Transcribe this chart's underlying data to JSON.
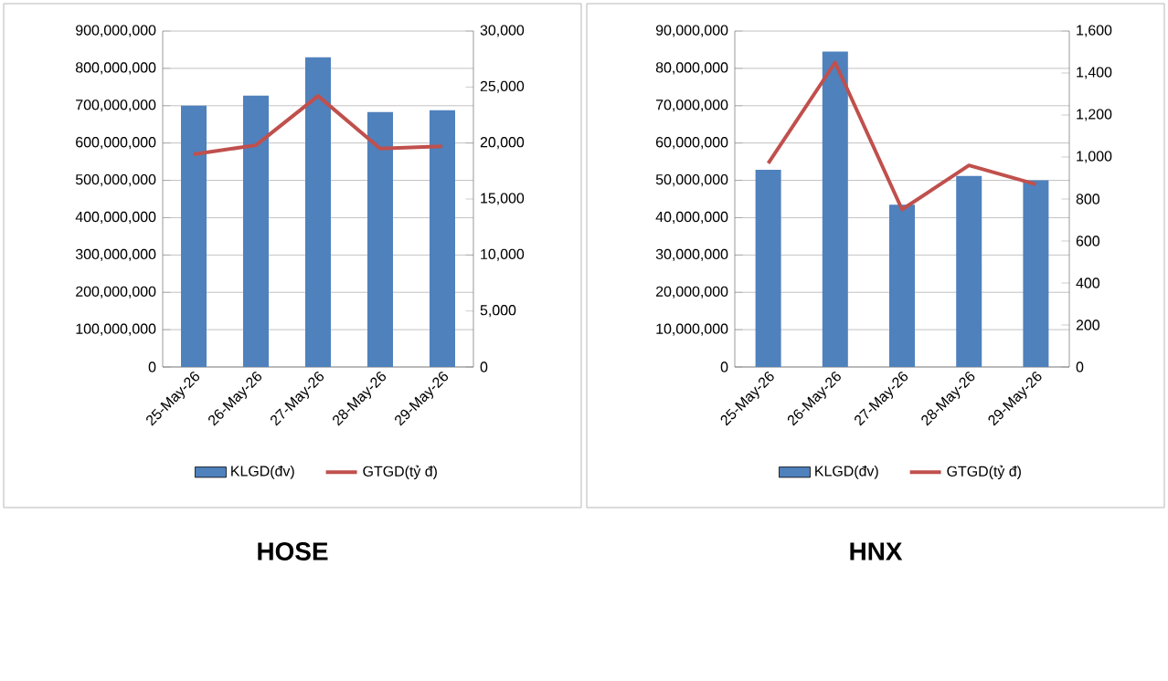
{
  "chart_data": [
    {
      "type": "bar",
      "title": "HOSE",
      "categories": [
        "25-May-26",
        "26-May-26",
        "27-May-26",
        "28-May-26",
        "29-May-26"
      ],
      "series": [
        {
          "name": "KLGD(đv)",
          "color": "#4f81bd",
          "values": [
            700000000,
            727000000,
            830000000,
            683000000,
            688000000
          ]
        },
        {
          "name": "GTGD(tỷ đ)",
          "type": "line",
          "axis": "y2",
          "color": "#c0504d",
          "values": [
            19000,
            19800,
            24200,
            19500,
            19700
          ]
        }
      ],
      "ylim": [
        0,
        900000000
      ],
      "yticks": [
        0,
        {
          "value": 100000000,
          "label": "100,000,000"
        },
        {
          "value": 200000000,
          "label": "200,000,000"
        },
        {
          "value": 300000000,
          "label": "300,000,000"
        },
        {
          "value": 400000000,
          "label": "400,000,000"
        },
        {
          "value": 500000000,
          "label": "500,000,000"
        },
        {
          "value": 600000000,
          "label": "600,000,000"
        },
        {
          "value": 700000000,
          "label": "700,000,000"
        },
        {
          "value": 800000000,
          "label": "800,000,000"
        },
        {
          "value": 900000000,
          "label": "900,000,000"
        }
      ],
      "y2lim": [
        0,
        30000
      ],
      "y2ticks": [
        0,
        {
          "value": 5000,
          "label": "5,000"
        },
        {
          "value": 10000,
          "label": "10,000"
        },
        {
          "value": 15000,
          "label": "15,000"
        },
        {
          "value": 20000,
          "label": "20,000"
        },
        {
          "value": 25000,
          "label": "25,000"
        },
        {
          "value": 30000,
          "label": "30,000"
        }
      ],
      "grid": "y",
      "legend": "bottom"
    },
    {
      "type": "bar",
      "title": "HNX",
      "categories": [
        "25-May-26",
        "26-May-26",
        "27-May-26",
        "28-May-26",
        "29-May-26"
      ],
      "series": [
        {
          "name": "KLGD(đv)",
          "color": "#4f81bd",
          "values": [
            52800000,
            84500000,
            43500000,
            51200000,
            50000000
          ]
        },
        {
          "name": "GTGD(tỷ đ)",
          "type": "line",
          "axis": "y2",
          "color": "#c0504d",
          "values": [
            970,
            1450,
            750,
            960,
            870
          ]
        }
      ],
      "ylim": [
        0,
        90000000
      ],
      "yticks": [
        0,
        {
          "value": 10000000,
          "label": "10,000,000"
        },
        {
          "value": 20000000,
          "label": "20,000,000"
        },
        {
          "value": 30000000,
          "label": "30,000,000"
        },
        {
          "value": 40000000,
          "label": "40,000,000"
        },
        {
          "value": 50000000,
          "label": "50,000,000"
        },
        {
          "value": 60000000,
          "label": "60,000,000"
        },
        {
          "value": 70000000,
          "label": "70,000,000"
        },
        {
          "value": 80000000,
          "label": "80,000,000"
        },
        {
          "value": 90000000,
          "label": "90,000,000"
        }
      ],
      "y2lim": [
        0,
        1600
      ],
      "y2ticks": [
        0,
        {
          "value": 200,
          "label": "200"
        },
        {
          "value": 400,
          "label": "400"
        },
        {
          "value": 600,
          "label": "600"
        },
        {
          "value": 800,
          "label": "800"
        },
        {
          "value": 1000,
          "label": "1,000"
        },
        {
          "value": 1200,
          "label": "1,200"
        },
        {
          "value": 1400,
          "label": "1,400"
        },
        {
          "value": 1600,
          "label": "1,600"
        }
      ],
      "grid": "y",
      "legend": "bottom"
    }
  ]
}
